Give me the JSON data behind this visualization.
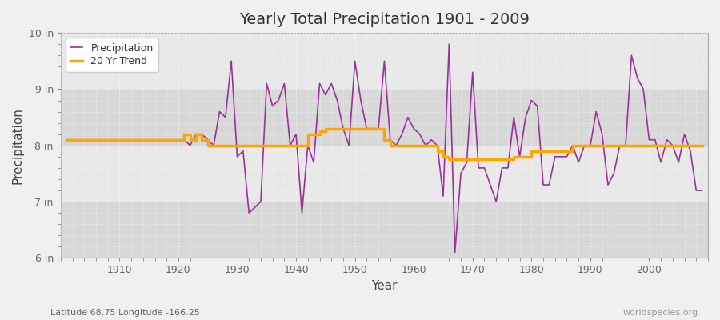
{
  "title": "Yearly Total Precipitation 1901 - 2009",
  "xlabel": "Year",
  "ylabel": "Precipitation",
  "subtitle_left": "Latitude 68.75 Longitude -166.25",
  "subtitle_right": "worldspecies.org",
  "legend_entries": [
    "Precipitation",
    "20 Yr Trend"
  ],
  "precip_color": "#993399",
  "trend_color": "#ffa500",
  "background_color": "#f0f0f0",
  "plot_bg_color": "#e8e8e8",
  "band_color_dark": "#d8d8d8",
  "band_color_light": "#e8e8e8",
  "ylim": [
    6,
    10
  ],
  "yticks": [
    6,
    7,
    8,
    9,
    10
  ],
  "ytick_labels": [
    "6 in",
    "7 in",
    "8 in",
    "9 in",
    "10 in"
  ],
  "start_year": 1901,
  "end_year": 2009,
  "precip_data": [
    8.1,
    8.1,
    8.1,
    8.1,
    8.1,
    8.1,
    8.1,
    8.1,
    8.1,
    8.1,
    8.1,
    8.1,
    8.1,
    8.1,
    8.1,
    8.1,
    8.1,
    8.1,
    8.1,
    8.1,
    8.1,
    8.0,
    8.2,
    8.2,
    8.1,
    8.0,
    8.6,
    8.5,
    9.5,
    7.8,
    7.9,
    6.8,
    6.9,
    7.0,
    9.1,
    8.7,
    8.8,
    9.1,
    8.0,
    8.2,
    6.8,
    8.0,
    7.7,
    9.1,
    8.9,
    9.1,
    8.8,
    8.3,
    8.0,
    9.5,
    8.8,
    8.3,
    8.3,
    8.3,
    9.5,
    8.1,
    8.0,
    8.2,
    8.5,
    8.3,
    8.2,
    8.0,
    8.1,
    8.0,
    7.1,
    9.8,
    6.1,
    7.5,
    7.7,
    9.3,
    7.6,
    7.6,
    7.3,
    7.0,
    7.6,
    7.6,
    8.5,
    7.8,
    8.5,
    8.8,
    8.7,
    7.3,
    7.3,
    7.8,
    7.8,
    7.8,
    8.0,
    7.7,
    8.0,
    8.0,
    8.6,
    8.2,
    7.3,
    7.5,
    8.0,
    8.0,
    9.6,
    9.2,
    9.0,
    8.1,
    8.1,
    7.7,
    8.1,
    8.0,
    7.7,
    8.2,
    7.9,
    7.2,
    7.2
  ],
  "trend_data": [
    8.1,
    8.1,
    8.1,
    8.1,
    8.1,
    8.1,
    8.1,
    8.1,
    8.1,
    8.1,
    8.1,
    8.1,
    8.1,
    8.1,
    8.1,
    8.1,
    8.1,
    8.1,
    8.1,
    8.1,
    8.2,
    8.1,
    8.2,
    8.1,
    8.0,
    8.0,
    8.0,
    8.0,
    8.0,
    8.0,
    8.0,
    8.0,
    8.0,
    8.0,
    8.0,
    8.0,
    8.0,
    8.0,
    8.0,
    8.0,
    8.0,
    8.2,
    8.2,
    8.25,
    8.3,
    8.3,
    8.3,
    8.3,
    8.3,
    8.3,
    8.3,
    8.3,
    8.3,
    8.3,
    8.1,
    8.0,
    8.0,
    8.0,
    8.0,
    8.0,
    8.0,
    8.0,
    8.0,
    7.9,
    7.8,
    7.75,
    7.75,
    7.75,
    7.75,
    7.75,
    7.75,
    7.75,
    7.75,
    7.75,
    7.75,
    7.75,
    7.8,
    7.8,
    7.8,
    7.9,
    7.9,
    7.9,
    7.9,
    7.9,
    7.9,
    7.9,
    8.0,
    8.0,
    8.0,
    8.0,
    8.0,
    8.0,
    8.0,
    8.0,
    8.0,
    8.0,
    8.0,
    8.0,
    8.0,
    8.0,
    8.0,
    8.0,
    8.0,
    8.0,
    8.0,
    8.0,
    8.0,
    8.0,
    8.0
  ]
}
